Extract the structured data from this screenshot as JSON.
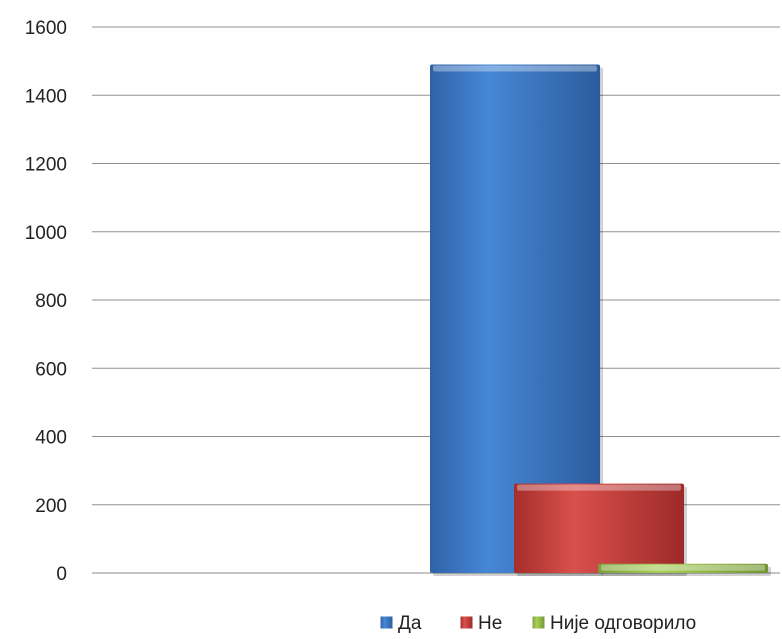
{
  "chart_data": {
    "type": "bar",
    "categories": [
      ""
    ],
    "series": [
      {
        "name": "Да",
        "values": [
          1490
        ],
        "color": "#3a78c9"
      },
      {
        "name": "Не",
        "values": [
          262
        ],
        "color": "#c43a37"
      },
      {
        "name": "Није одговорило",
        "values": [
          27
        ],
        "color": "#93b94a"
      }
    ],
    "title": "",
    "xlabel": "",
    "ylabel": "",
    "ylim": [
      0,
      1600
    ],
    "yticks": [
      "0",
      "200",
      "400",
      "600",
      "800",
      "1000",
      "1200",
      "1400",
      "1600"
    ],
    "grid": true,
    "legend": "bottom-right"
  }
}
